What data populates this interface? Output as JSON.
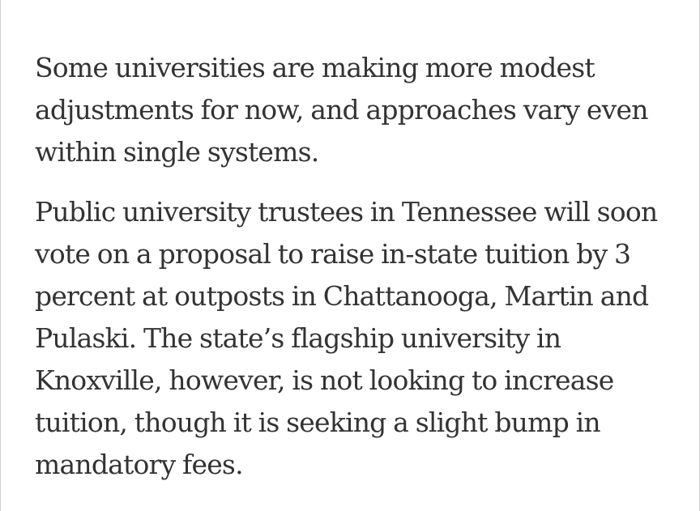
{
  "article": {
    "paragraphs": [
      "Some universities are making more modest adjustments for now, and approaches vary even within single systems.",
      "Public university trustees in Tennessee will soon vote on a proposal to raise in-state tuition by 3 percent at outposts in Chattanooga, Martin and Pulaski. The state’s flagship university in Knoxville, however, is not looking to increase tuition, though it is seeking a slight bump in mandatory fees."
    ]
  },
  "colors": {
    "text": "#333333",
    "background": "#ffffff",
    "border": "#cfcfcf"
  }
}
